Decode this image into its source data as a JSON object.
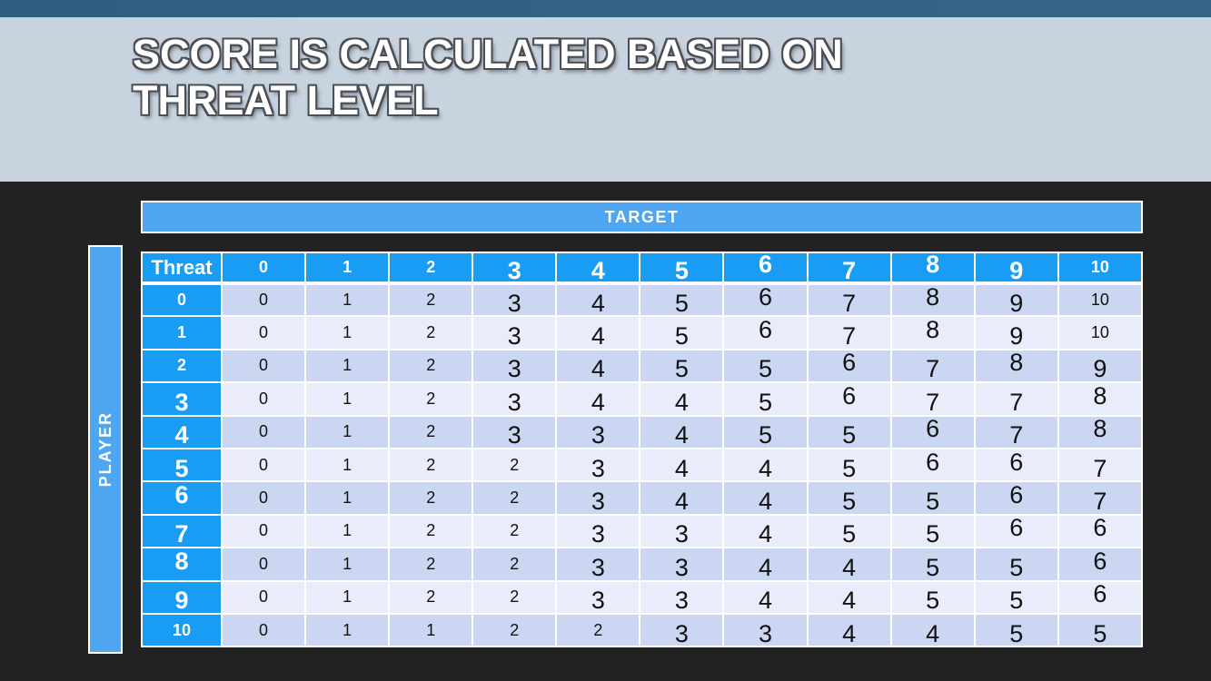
{
  "title": {
    "text": "SCORE IS CALCULATED BASED ON THREAT LEVEL"
  },
  "axes": {
    "target_label": "TARGET",
    "player_label": "PLAYER"
  },
  "chart_data": {
    "type": "table",
    "title": "SCORE IS CALCULATED BASED ON THREAT LEVEL",
    "column_axis_label": "TARGET",
    "row_axis_label": "PLAYER",
    "corner_label": "Threat",
    "column_headers": [
      "0",
      "1",
      "2",
      "3",
      "4",
      "5",
      "6",
      "7",
      "8",
      "9",
      "10"
    ],
    "row_headers": [
      "0",
      "1",
      "2",
      "3",
      "4",
      "5",
      "6",
      "7",
      "8",
      "9",
      "10"
    ],
    "values": [
      [
        0,
        1,
        2,
        3,
        4,
        5,
        6,
        7,
        8,
        9,
        10
      ],
      [
        0,
        1,
        2,
        3,
        4,
        5,
        6,
        7,
        8,
        9,
        10
      ],
      [
        0,
        1,
        2,
        3,
        4,
        5,
        5,
        6,
        7,
        8,
        9
      ],
      [
        0,
        1,
        2,
        3,
        4,
        4,
        5,
        6,
        7,
        7,
        8
      ],
      [
        0,
        1,
        2,
        3,
        3,
        4,
        5,
        5,
        6,
        7,
        8
      ],
      [
        0,
        1,
        2,
        2,
        3,
        4,
        4,
        5,
        6,
        6,
        7
      ],
      [
        0,
        1,
        2,
        2,
        3,
        4,
        4,
        5,
        5,
        6,
        7
      ],
      [
        0,
        1,
        2,
        2,
        3,
        3,
        4,
        5,
        5,
        6,
        6
      ],
      [
        0,
        1,
        2,
        2,
        3,
        3,
        4,
        4,
        5,
        5,
        6
      ],
      [
        0,
        1,
        2,
        2,
        3,
        3,
        4,
        4,
        5,
        5,
        6
      ],
      [
        0,
        1,
        1,
        2,
        2,
        3,
        3,
        4,
        4,
        5,
        5
      ]
    ]
  },
  "colors": {
    "header_blue": "#189CF4",
    "band_blue": "#4FA6F0",
    "row_even": "#CBD7F2",
    "row_odd": "#E9EDFB",
    "top_bar": "#2E5E82",
    "title_band": "#C7D3DF",
    "title_text": "#FFFFFF",
    "cell_text": "#111111"
  }
}
